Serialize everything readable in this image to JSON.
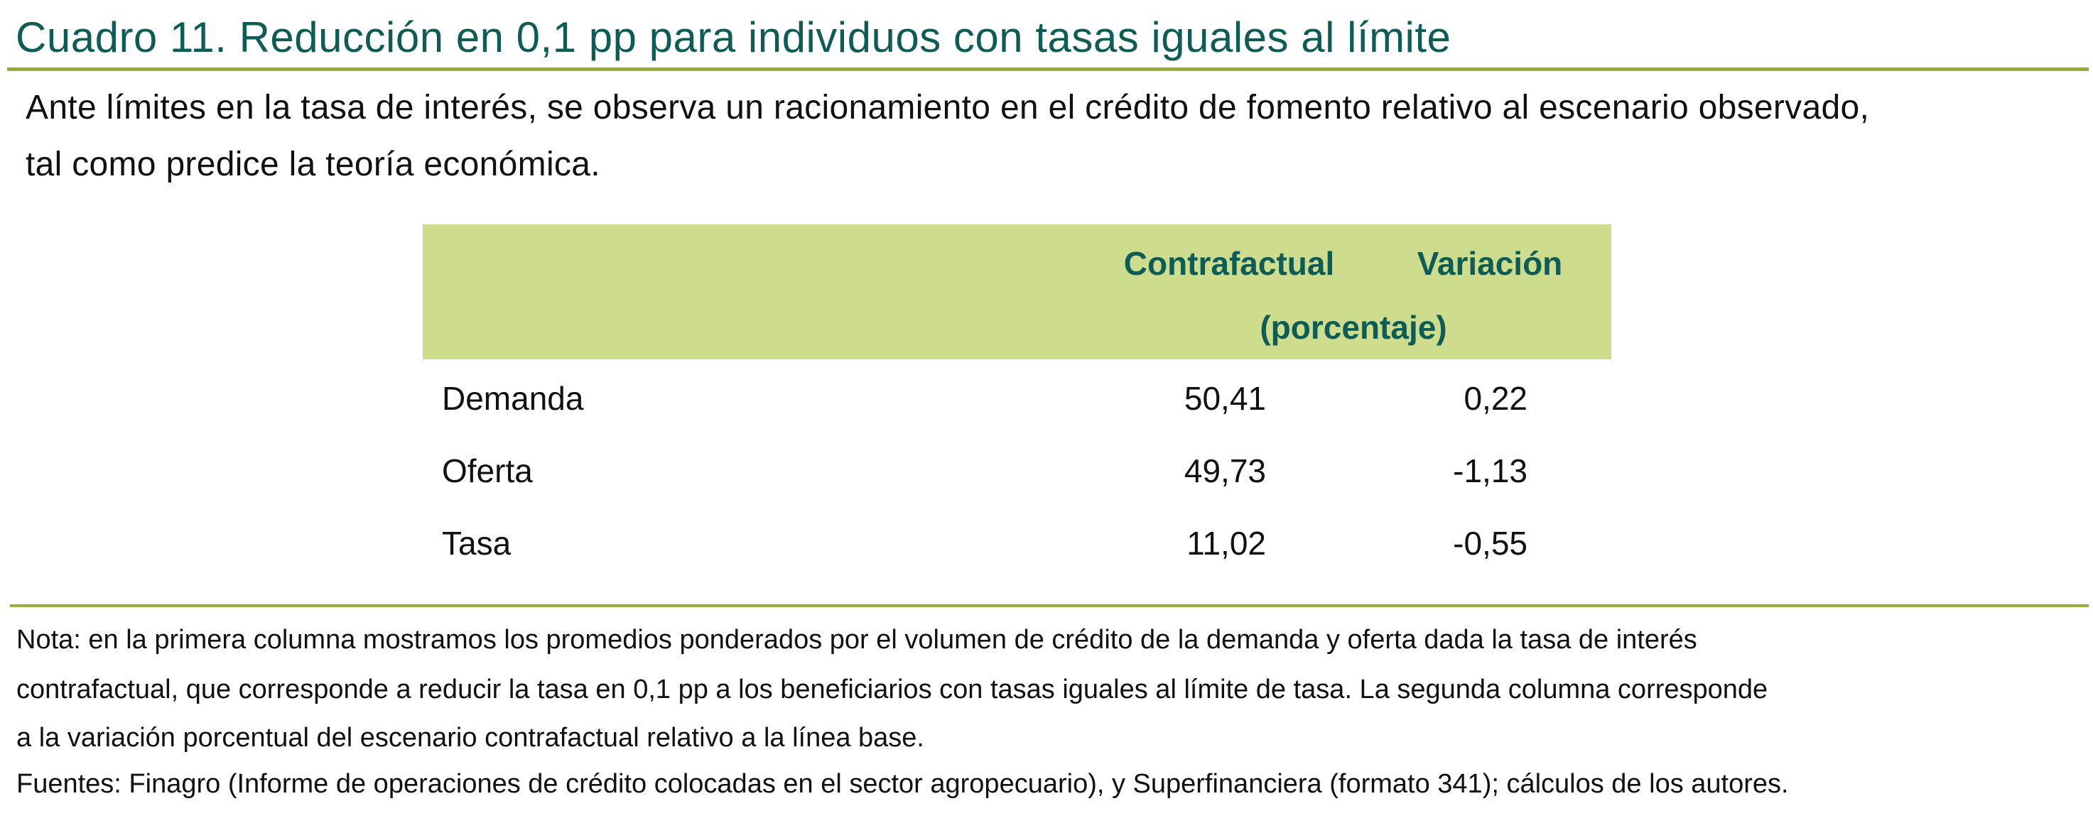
{
  "title": "Cuadro 11. Reducción en 0,1 pp para individuos con tasas iguales al límite",
  "intro": [
    "Ante límites en la tasa de interés, se observa un racionamiento en el crédito de fomento relativo al escenario observado,",
    "tal como predice la teoría económica."
  ],
  "table": {
    "headers": {
      "col1": "Contrafactual",
      "col2": "Variación",
      "unit": "(porcentaje)"
    },
    "rows": [
      {
        "label": "Demanda",
        "contrafactual": "50,41",
        "variacion": "0,22"
      },
      {
        "label": "Oferta",
        "contrafactual": "49,73",
        "variacion": "-1,13"
      },
      {
        "label": "Tasa",
        "contrafactual": "11,02",
        "variacion": "-0,55"
      }
    ]
  },
  "notes": [
    "Nota: en la primera columna mostramos los promedios ponderados por el volumen de crédito de la demanda y oferta dada la tasa de interés",
    "contrafactual, que corresponde a reducir la tasa en 0,1 pp a los beneficiarios con tasas iguales al límite de tasa. La segunda columna corresponde",
    "a la variación porcentual del escenario contrafactual relativo a la línea base.",
    "Fuentes: Finagro (Informe de operaciones de crédito colocadas en el sector agropecuario), y Superfinanciera (formato 341); cálculos de los autores."
  ],
  "colors": {
    "title": "#0d5c56",
    "rule": "#9aad3b",
    "header_bg": "#cddd8d"
  }
}
